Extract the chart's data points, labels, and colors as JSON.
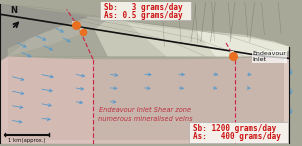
{
  "fig_width": 3.02,
  "fig_height": 1.46,
  "dpi": 100,
  "bg_color": "#a8a898",
  "top_text_line1": "Sb:   3 grams/day",
  "top_text_line2": "As: 0.5 grams/day",
  "bottom_text_line1": "Sb: 1200 grams/day",
  "bottom_text_line2": "As:   400 grams/day",
  "shear_zone_label1": "Endeavour Inlet Shear zone",
  "shear_zone_label2": "numerous mineralised veins",
  "endeavour_label": "Endeavour\nInlet",
  "scale_label": "1 km(approx.)",
  "arrow_color": "#5599cc",
  "dashed_line_color": "#cc2244",
  "orange_dot_color": "#e87020",
  "font_size_main": 5.5,
  "font_size_shear": 4.8
}
